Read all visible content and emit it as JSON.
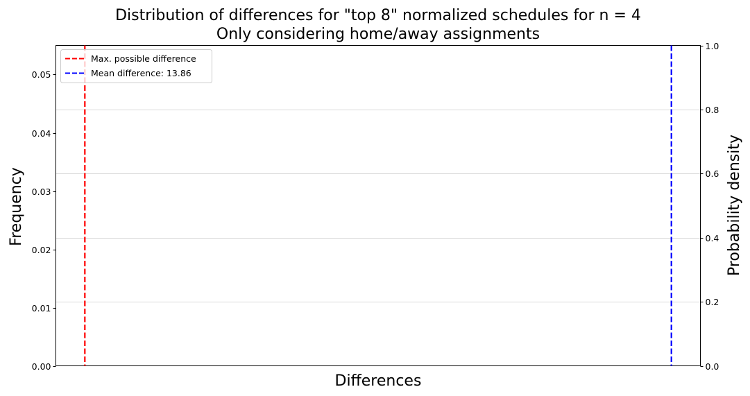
{
  "chart_data": {
    "type": "bar",
    "title": "Distribution of differences for \"top 8\" normalized schedules for n = 4",
    "subtitle": "Only considering home/away assignments",
    "xlabel": "Differences",
    "ylabel": "Frequency",
    "y2label": "Probability density",
    "x_tick_labels": [],
    "x_positions": {
      "min": 0,
      "max": 1
    },
    "ylim": [
      0,
      0.055
    ],
    "yticks": [
      0.0,
      0.01,
      0.02,
      0.03,
      0.04,
      0.05
    ],
    "ytick_labels": [
      "0.00",
      "0.01",
      "0.02",
      "0.03",
      "0.04",
      "0.05"
    ],
    "y2lim": [
      0,
      1
    ],
    "y2ticks": [
      0.0,
      0.2,
      0.4,
      0.6,
      0.8,
      1.0
    ],
    "y2tick_labels": [
      "0.0",
      "0.2",
      "0.4",
      "0.6",
      "0.8",
      "1.0"
    ],
    "grid": "horizontal at right-axis ticks",
    "values": [],
    "vlines": [
      {
        "name": "Max. possible difference",
        "position": 0.045,
        "color": "#ff0000",
        "style": "dashed"
      },
      {
        "name": "Mean difference: 13.86",
        "position": 0.955,
        "color": "#0000ff",
        "style": "dashed"
      }
    ],
    "legend": {
      "placement": "top-left",
      "entries": [
        "Max. possible difference",
        "Mean difference: 13.86"
      ]
    }
  }
}
